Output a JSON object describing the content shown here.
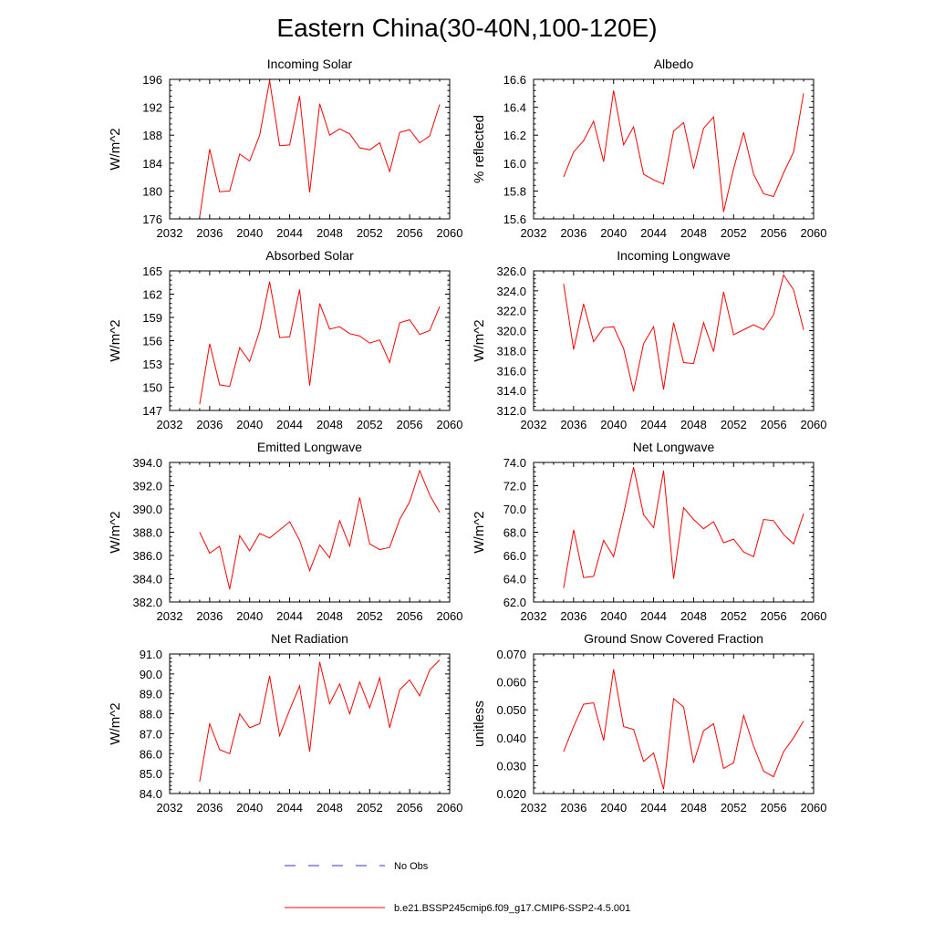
{
  "title": "Eastern China(30-40N,100-120E)",
  "legend": {
    "obs_label": "No Obs",
    "model_label": "b.e21.BSSP245cmip6.f09_g17.CMIP6-SSP2-4.5.001",
    "obs_color": "#3333cc",
    "model_color": "#ff0000"
  },
  "line_color": "#ff0000",
  "chart_data": [
    {
      "type": "line",
      "title": "Incoming Solar",
      "ylabel": "W/m^2",
      "xlim": [
        2032,
        2060
      ],
      "ylim": [
        176,
        196
      ],
      "xticks": [
        "2032",
        "2036",
        "2040",
        "2044",
        "2048",
        "2052",
        "2056",
        "2060"
      ],
      "yticks": [
        "176",
        "180",
        "184",
        "188",
        "192",
        "196"
      ],
      "x": [
        2035,
        2036,
        2037,
        2038,
        2039,
        2040,
        2041,
        2042,
        2043,
        2044,
        2045,
        2046,
        2047,
        2048,
        2049,
        2050,
        2051,
        2052,
        2053,
        2054,
        2055,
        2056,
        2057,
        2058,
        2059
      ],
      "values": [
        176.3,
        186.0,
        179.9,
        180.0,
        185.3,
        184.3,
        188.0,
        195.8,
        186.5,
        186.6,
        193.6,
        179.8,
        192.5,
        188.0,
        188.9,
        188.2,
        186.2,
        185.9,
        186.9,
        182.8,
        188.4,
        188.8,
        186.9,
        187.9,
        192.4
      ]
    },
    {
      "type": "line",
      "title": "Albedo",
      "ylabel": "% reflected",
      "xlim": [
        2032,
        2060
      ],
      "ylim": [
        15.6,
        16.6
      ],
      "xticks": [
        "2032",
        "2036",
        "2040",
        "2044",
        "2048",
        "2052",
        "2056",
        "2060"
      ],
      "yticks": [
        "15.6",
        "15.8",
        "16.0",
        "16.2",
        "16.4",
        "16.6"
      ],
      "x": [
        2035,
        2036,
        2037,
        2038,
        2039,
        2040,
        2041,
        2042,
        2043,
        2044,
        2045,
        2046,
        2047,
        2048,
        2049,
        2050,
        2051,
        2052,
        2053,
        2054,
        2055,
        2056,
        2057,
        2058,
        2059
      ],
      "values": [
        15.9,
        16.08,
        16.16,
        16.3,
        16.01,
        16.52,
        16.13,
        16.26,
        15.92,
        15.88,
        15.85,
        16.23,
        16.29,
        15.96,
        16.25,
        16.33,
        15.65,
        15.96,
        16.22,
        15.92,
        15.78,
        15.76,
        15.93,
        16.08,
        16.5
      ]
    },
    {
      "type": "line",
      "title": "Absorbed Solar",
      "ylabel": "W/m^2",
      "xlim": [
        2032,
        2060
      ],
      "ylim": [
        147,
        165
      ],
      "xticks": [
        "2032",
        "2036",
        "2040",
        "2044",
        "2048",
        "2052",
        "2056",
        "2060"
      ],
      "yticks": [
        "147",
        "150",
        "153",
        "156",
        "159",
        "162",
        "165"
      ],
      "x": [
        2035,
        2036,
        2037,
        2038,
        2039,
        2040,
        2041,
        2042,
        2043,
        2044,
        2045,
        2046,
        2047,
        2048,
        2049,
        2050,
        2051,
        2052,
        2053,
        2054,
        2055,
        2056,
        2057,
        2058,
        2059
      ],
      "values": [
        147.8,
        155.6,
        150.3,
        150.1,
        155.1,
        153.3,
        157.3,
        163.6,
        156.4,
        156.5,
        162.6,
        150.2,
        160.8,
        157.5,
        157.8,
        156.9,
        156.6,
        155.7,
        156.1,
        153.2,
        158.3,
        158.7,
        156.8,
        157.3,
        160.4
      ]
    },
    {
      "type": "line",
      "title": "Incoming Longwave",
      "ylabel": "W/m^2",
      "xlim": [
        2032,
        2060
      ],
      "ylim": [
        312,
        326
      ],
      "xticks": [
        "2032",
        "2036",
        "2040",
        "2044",
        "2048",
        "2052",
        "2056",
        "2060"
      ],
      "yticks": [
        "312.0",
        "314.0",
        "316.0",
        "318.0",
        "320.0",
        "322.0",
        "324.0",
        "326.0"
      ],
      "x": [
        2035,
        2036,
        2037,
        2038,
        2039,
        2040,
        2041,
        2042,
        2043,
        2044,
        2045,
        2046,
        2047,
        2048,
        2049,
        2050,
        2051,
        2052,
        2053,
        2054,
        2055,
        2056,
        2057,
        2058,
        2059
      ],
      "values": [
        324.7,
        318.1,
        322.7,
        318.9,
        320.3,
        320.4,
        318.2,
        313.9,
        318.7,
        320.4,
        314.1,
        320.8,
        316.8,
        316.7,
        320.8,
        317.9,
        323.9,
        319.6,
        320.1,
        320.6,
        320.1,
        321.6,
        325.6,
        324.1,
        320.1
      ]
    },
    {
      "type": "line",
      "title": "Emitted Longwave",
      "ylabel": "W/m^2",
      "xlim": [
        2032,
        2060
      ],
      "ylim": [
        382,
        394
      ],
      "xticks": [
        "2032",
        "2036",
        "2040",
        "2044",
        "2048",
        "2052",
        "2056",
        "2060"
      ],
      "yticks": [
        "382.0",
        "384.0",
        "386.0",
        "388.0",
        "390.0",
        "392.0",
        "394.0"
      ],
      "x": [
        2035,
        2036,
        2037,
        2038,
        2039,
        2040,
        2041,
        2042,
        2043,
        2044,
        2045,
        2046,
        2047,
        2048,
        2049,
        2050,
        2051,
        2052,
        2053,
        2054,
        2055,
        2056,
        2057,
        2058,
        2059
      ],
      "values": [
        388.0,
        386.2,
        386.8,
        383.1,
        387.7,
        386.4,
        387.9,
        387.5,
        388.2,
        388.9,
        387.3,
        384.7,
        386.9,
        385.8,
        389.0,
        386.8,
        391.0,
        387.0,
        386.5,
        386.7,
        389.1,
        390.6,
        393.3,
        391.2,
        389.7
      ]
    },
    {
      "type": "line",
      "title": "Net Longwave",
      "ylabel": "W/m^2",
      "xlim": [
        2032,
        2060
      ],
      "ylim": [
        62,
        74
      ],
      "xticks": [
        "2032",
        "2036",
        "2040",
        "2044",
        "2048",
        "2052",
        "2056",
        "2060"
      ],
      "yticks": [
        "62.0",
        "64.0",
        "66.0",
        "68.0",
        "70.0",
        "72.0",
        "74.0"
      ],
      "x": [
        2035,
        2036,
        2037,
        2038,
        2039,
        2040,
        2041,
        2042,
        2043,
        2044,
        2045,
        2046,
        2047,
        2048,
        2049,
        2050,
        2051,
        2052,
        2053,
        2054,
        2055,
        2056,
        2057,
        2058,
        2059
      ],
      "values": [
        63.2,
        68.2,
        64.1,
        64.2,
        67.3,
        65.9,
        69.6,
        73.6,
        69.5,
        68.4,
        73.3,
        64.0,
        70.1,
        69.1,
        68.3,
        68.9,
        67.1,
        67.4,
        66.3,
        65.9,
        69.1,
        69.0,
        67.8,
        67.0,
        69.6
      ]
    },
    {
      "type": "line",
      "title": "Net Radiation",
      "ylabel": "W/m^2",
      "xlim": [
        2032,
        2060
      ],
      "ylim": [
        84,
        91
      ],
      "xticks": [
        "2032",
        "2036",
        "2040",
        "2044",
        "2048",
        "2052",
        "2056",
        "2060"
      ],
      "yticks": [
        "84.0",
        "85.0",
        "86.0",
        "87.0",
        "88.0",
        "89.0",
        "90.0",
        "91.0"
      ],
      "x": [
        2035,
        2036,
        2037,
        2038,
        2039,
        2040,
        2041,
        2042,
        2043,
        2044,
        2045,
        2046,
        2047,
        2048,
        2049,
        2050,
        2051,
        2052,
        2053,
        2054,
        2055,
        2056,
        2057,
        2058,
        2059
      ],
      "values": [
        84.6,
        87.5,
        86.2,
        86.0,
        88.0,
        87.3,
        87.5,
        89.9,
        86.9,
        88.2,
        89.4,
        86.1,
        90.6,
        88.5,
        89.5,
        88.0,
        89.6,
        88.3,
        89.8,
        87.3,
        89.2,
        89.7,
        88.9,
        90.2,
        90.7
      ]
    },
    {
      "type": "line",
      "title": "Ground Snow Covered Fraction",
      "ylabel": "unitless",
      "xlim": [
        2032,
        2060
      ],
      "ylim": [
        0.02,
        0.07
      ],
      "xticks": [
        "2032",
        "2036",
        "2040",
        "2044",
        "2048",
        "2052",
        "2056",
        "2060"
      ],
      "yticks": [
        "0.020",
        "0.030",
        "0.040",
        "0.050",
        "0.060",
        "0.070"
      ],
      "x": [
        2035,
        2036,
        2037,
        2038,
        2039,
        2040,
        2041,
        2042,
        2043,
        2044,
        2045,
        2046,
        2047,
        2048,
        2049,
        2050,
        2051,
        2052,
        2053,
        2054,
        2055,
        2056,
        2057,
        2058,
        2059
      ],
      "values": [
        0.035,
        0.044,
        0.052,
        0.0525,
        0.039,
        0.0645,
        0.044,
        0.043,
        0.0315,
        0.0345,
        0.0215,
        0.054,
        0.051,
        0.031,
        0.0425,
        0.045,
        0.029,
        0.031,
        0.048,
        0.037,
        0.028,
        0.026,
        0.035,
        0.04,
        0.046
      ]
    }
  ]
}
